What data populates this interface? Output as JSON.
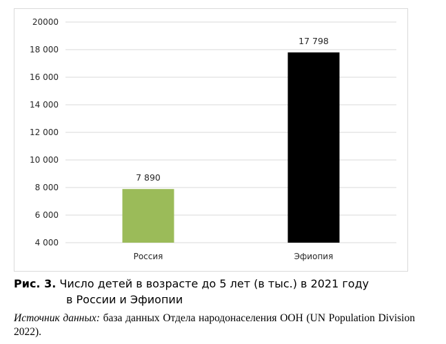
{
  "chart_data": {
    "type": "bar",
    "categories": [
      "Россия",
      "Эфиопия"
    ],
    "values": [
      7890,
      17798
    ],
    "data_labels": [
      "7 890",
      "17 798"
    ],
    "colors": [
      "#9bbb59",
      "#000000"
    ],
    "yticks": [
      "4 000",
      "6 000",
      "8 000",
      "10 000",
      "12 000",
      "14 000",
      "16 000",
      "18 000",
      "20000"
    ],
    "ytick_values": [
      4000,
      6000,
      8000,
      10000,
      12000,
      14000,
      16000,
      18000,
      20000
    ],
    "ylim": [
      4000,
      20000
    ],
    "grid": true,
    "gridline_color": "#d9d9d9"
  },
  "caption": {
    "label": "Рис. 3.",
    "line1": "Число детей в возрасте до 5 лет (в тыс.) в 2021 году",
    "line2": "в России и Эфиопии"
  },
  "source": {
    "label": "Источник данных:",
    "text": "база данных Отдела народонаселения ООН (UN Population Division 2022)."
  }
}
